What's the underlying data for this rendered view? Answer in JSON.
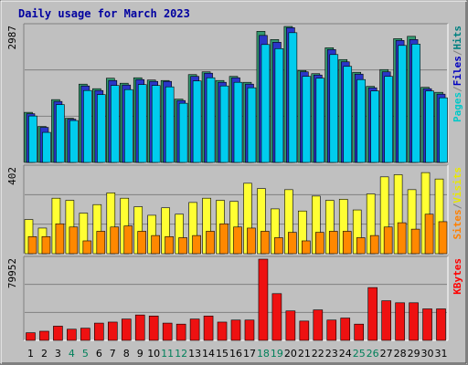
{
  "chart_data": {
    "type": "bar",
    "title": "Daily usage for March 2023",
    "days": [
      "1",
      "2",
      "3",
      "4",
      "5",
      "6",
      "7",
      "8",
      "9",
      "10",
      "11",
      "12",
      "13",
      "14",
      "15",
      "16",
      "17",
      "18",
      "19",
      "20",
      "21",
      "22",
      "23",
      "24",
      "25",
      "26",
      "27",
      "28",
      "29",
      "30",
      "31"
    ],
    "weekend_days": [
      "4",
      "5",
      "11",
      "12",
      "18",
      "19",
      "25",
      "26"
    ],
    "panels": [
      {
        "id": "hits",
        "ymax": 2987,
        "ymax_label": "2987",
        "legend": [
          {
            "text": "Pages",
            "color": "#00c8c8"
          },
          {
            "text": "/",
            "color": "#808080"
          },
          {
            "text": "Files",
            "color": "#0000c0"
          },
          {
            "text": "/",
            "color": "#808080"
          },
          {
            "text": "Hits",
            "color": "#008080"
          }
        ],
        "series": [
          {
            "name": "Hits",
            "color": "#339970",
            "values": [
              1100,
              790,
              1380,
              970,
              1720,
              1620,
              1850,
              1740,
              1860,
              1810,
              1800,
              1390,
              1930,
              1990,
              1800,
              1890,
              1760,
              2880,
              2700,
              2987,
              2020,
              1950,
              2520,
              2260,
              1980,
              1670,
              2040,
              2720,
              2770,
              1650,
              1540
            ]
          },
          {
            "name": "Files",
            "color": "#2a36c8",
            "values": [
              1070,
              770,
              1340,
              950,
              1680,
              1580,
              1800,
              1700,
              1820,
              1780,
              1780,
              1360,
              1890,
              1960,
              1760,
              1860,
              1720,
              2790,
              2640,
              2960,
              1990,
              1920,
              2480,
              2210,
              1940,
              1640,
              1990,
              2680,
              2700,
              1620,
              1500
            ]
          },
          {
            "name": "Pages",
            "color": "#00ccee",
            "values": [
              1020,
              660,
              1270,
              920,
              1580,
              1490,
              1690,
              1600,
              1710,
              1690,
              1660,
              1300,
              1790,
              1860,
              1680,
              1760,
              1640,
              2590,
              2500,
              2850,
              1890,
              1850,
              2370,
              2110,
              1820,
              1570,
              1890,
              2570,
              2600,
              1570,
              1420
            ]
          }
        ]
      },
      {
        "id": "visits",
        "ymax": 402,
        "ymax_label": "402",
        "legend": [
          {
            "text": "Sites",
            "color": "#ff8000"
          },
          {
            "text": "/",
            "color": "#808080"
          },
          {
            "text": "Visits",
            "color": "#e8e800"
          }
        ],
        "series": [
          {
            "name": "Visits",
            "color": "#ffff33",
            "values": [
              160,
              120,
              260,
              250,
              190,
              230,
              285,
              260,
              220,
              180,
              215,
              185,
              240,
              260,
              250,
              245,
              330,
              305,
              210,
              300,
              200,
              270,
              250,
              255,
              205,
              280,
              360,
              370,
              300,
              380,
              350
            ]
          },
          {
            "name": "Sites",
            "color": "#ff8800",
            "values": [
              80,
              80,
              140,
              125,
              60,
              105,
              125,
              130,
              105,
              85,
              80,
              75,
              85,
              105,
              140,
              125,
              120,
              105,
              75,
              100,
              60,
              100,
              105,
              105,
              75,
              85,
              125,
              145,
              115,
              185,
              150
            ]
          }
        ]
      },
      {
        "id": "kbytes",
        "ymax": 79952,
        "ymax_label": "79952",
        "legend": [
          {
            "text": "KBytes",
            "color": "#ff0000"
          }
        ],
        "series": [
          {
            "name": "KBytes",
            "color": "#ee1111",
            "values": [
              7500,
              9000,
              14000,
              11000,
              12000,
              17000,
              18000,
              21000,
              25000,
              24000,
              17000,
              16000,
              21000,
              24000,
              18000,
              20000,
              20000,
              79952,
              46000,
              29000,
              19000,
              30000,
              20000,
              22000,
              16000,
              52000,
              39000,
              37000,
              37000,
              31000,
              31000
            ]
          }
        ]
      }
    ]
  }
}
